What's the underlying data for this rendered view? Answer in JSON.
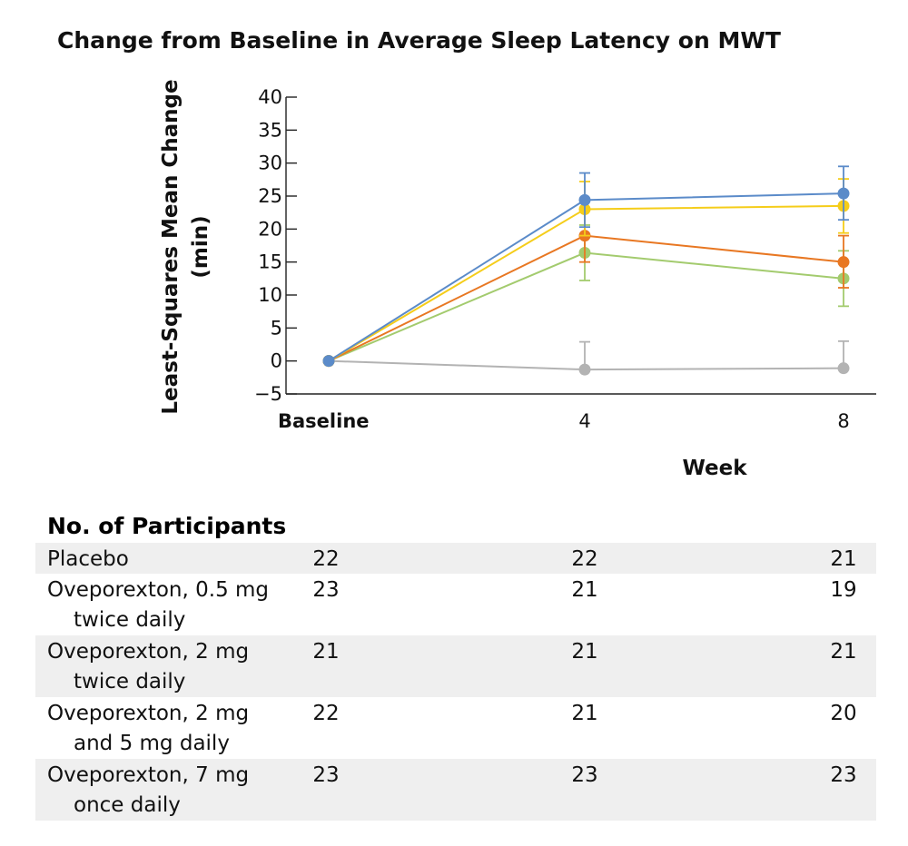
{
  "chart_data": {
    "type": "line",
    "title": "Change from Baseline in Average Sleep Latency on MWT",
    "ylabel": "Least-Squares Mean Change (min)",
    "ylabel_lines": [
      "Least-Squares Mean Change",
      "(min)"
    ],
    "xlabel": "Week",
    "ylim": [
      -5,
      40
    ],
    "yticks": [
      -5,
      0,
      5,
      10,
      15,
      20,
      25,
      30,
      35,
      40
    ],
    "ytick_labels": [
      "−5",
      "0",
      "5",
      "10",
      "15",
      "20",
      "25",
      "30",
      "35",
      "40"
    ],
    "x": [
      0,
      4,
      8
    ],
    "x_tick_labels": [
      "Baseline",
      "4",
      "8"
    ],
    "series": [
      {
        "name": "Placebo",
        "color": "#b3b3b3",
        "values": [
          0,
          -1.3,
          -1.1
        ],
        "err_upper": [
          null,
          2.9,
          3.0
        ],
        "err_lower": [
          null,
          null,
          null
        ]
      },
      {
        "name": "Oveporexton, 0.5 mg twice daily",
        "color": "#a3cb6e",
        "values": [
          0,
          16.4,
          12.5
        ],
        "err_upper": [
          null,
          20.6,
          16.7
        ],
        "err_lower": [
          null,
          12.2,
          8.3
        ]
      },
      {
        "name": "Oveporexton, 2 mg twice daily",
        "color": "#e87722",
        "values": [
          0,
          19.0,
          15.0
        ],
        "err_upper": [
          null,
          23.1,
          19.0
        ],
        "err_lower": [
          null,
          15.0,
          11.1
        ]
      },
      {
        "name": "Oveporexton, 2 mg and 5 mg daily",
        "color": "#f5cd1a",
        "values": [
          0,
          23.0,
          23.5
        ],
        "err_upper": [
          null,
          27.2,
          27.6
        ],
        "err_lower": [
          null,
          19.0,
          19.4
        ]
      },
      {
        "name": "Oveporexton, 7 mg once daily",
        "color": "#5b8bc9",
        "values": [
          0,
          24.4,
          25.4
        ],
        "err_upper": [
          null,
          28.5,
          29.5
        ],
        "err_lower": [
          null,
          20.3,
          21.4
        ]
      }
    ]
  },
  "participants": {
    "title": "No. of Participants",
    "rows": [
      {
        "label_lines": [
          "Placebo"
        ],
        "values": [
          "22",
          "22",
          "21"
        ]
      },
      {
        "label_lines": [
          "Oveporexton, 0.5 mg",
          "twice daily"
        ],
        "values": [
          "23",
          "21",
          "19"
        ]
      },
      {
        "label_lines": [
          "Oveporexton, 2 mg",
          "twice daily"
        ],
        "values": [
          "21",
          "21",
          "21"
        ]
      },
      {
        "label_lines": [
          "Oveporexton, 2 mg",
          "and 5 mg daily"
        ],
        "values": [
          "22",
          "21",
          "20"
        ]
      },
      {
        "label_lines": [
          "Oveporexton, 7 mg",
          "once daily"
        ],
        "values": [
          "23",
          "23",
          "23"
        ]
      }
    ]
  }
}
